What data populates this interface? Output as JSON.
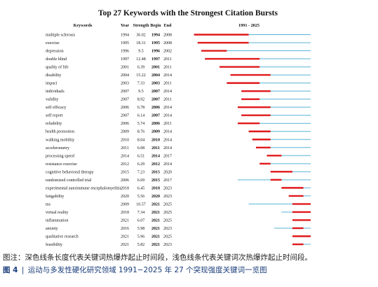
{
  "chart_data": {
    "type": "timeline",
    "title": "Top 27 Keywords with the Strongest Citation Bursts",
    "headers": {
      "keywords": "Keywords",
      "year": "Year",
      "strength": "Strength",
      "begin": "Begin",
      "end": "End",
      "range": "1991 - 2025"
    },
    "range": [
      1991,
      2025
    ],
    "rows": [
      {
        "keyword": "multiple sclerosis",
        "year": "1994",
        "strength": "36.02",
        "begin": "1994",
        "end": "2008"
      },
      {
        "keyword": "exercise",
        "year": "1995",
        "strength": "18.31",
        "begin": "1995",
        "end": "2008"
      },
      {
        "keyword": "depression",
        "year": "1996",
        "strength": "9.5",
        "begin": "1996",
        "end": "2002"
      },
      {
        "keyword": "double blind",
        "year": "1997",
        "strength": "12.48",
        "begin": "1997",
        "end": "2011"
      },
      {
        "keyword": "quality of life",
        "year": "2001",
        "strength": "6.39",
        "begin": "2001",
        "end": "2011"
      },
      {
        "keyword": "disability",
        "year": "2004",
        "strength": "15.22",
        "begin": "2004",
        "end": "2014"
      },
      {
        "keyword": "impact",
        "year": "2003",
        "strength": "7.33",
        "begin": "2003",
        "end": "2011"
      },
      {
        "keyword": "individuals",
        "year": "2007",
        "strength": "9.5",
        "begin": "2007",
        "end": "2014"
      },
      {
        "keyword": "validity",
        "year": "2007",
        "strength": "8.92",
        "begin": "2007",
        "end": "2011"
      },
      {
        "keyword": "self efficacy",
        "year": "2006",
        "strength": "6.78",
        "begin": "2006",
        "end": "2014"
      },
      {
        "keyword": "self report",
        "year": "2007",
        "strength": "6.14",
        "begin": "2007",
        "end": "2014"
      },
      {
        "keyword": "reliability",
        "year": "2006",
        "strength": "5.74",
        "begin": "2006",
        "end": "2011"
      },
      {
        "keyword": "health promotion",
        "year": "2009",
        "strength": "8.76",
        "begin": "2009",
        "end": "2014"
      },
      {
        "keyword": "walking mobility",
        "year": "2010",
        "strength": "8.04",
        "begin": "2010",
        "end": "2014"
      },
      {
        "keyword": "accelerometry",
        "year": "2011",
        "strength": "6.08",
        "begin": "2011",
        "end": "2014"
      },
      {
        "keyword": "processing speed",
        "year": "2014",
        "strength": "6.51",
        "begin": "2014",
        "end": "2017"
      },
      {
        "keyword": "resistance exercise",
        "year": "2012",
        "strength": "6.29",
        "begin": "2012",
        "end": "2014"
      },
      {
        "keyword": "cognitive behavioral therapy",
        "year": "2015",
        "strength": "7.23",
        "begin": "2015",
        "end": "2020"
      },
      {
        "keyword": "randomized controlled trial",
        "year": "2006",
        "strength": "6.69",
        "begin": "2015",
        "end": "2017"
      },
      {
        "keyword": "experimental autoimmune encephalomyelitis",
        "year": "2018",
        "strength": "6.45",
        "begin": "2018",
        "end": "2023"
      },
      {
        "keyword": "fatigability",
        "year": "2020",
        "strength": "5.56",
        "begin": "2020",
        "end": "2023"
      },
      {
        "keyword": "ms",
        "year": "2009",
        "strength": "10.57",
        "begin": "2021",
        "end": "2025"
      },
      {
        "keyword": "virtual reality",
        "year": "2018",
        "strength": "7.34",
        "begin": "2021",
        "end": "2025"
      },
      {
        "keyword": "inflammation",
        "year": "2021",
        "strength": "6.07",
        "begin": "2021",
        "end": "2025"
      },
      {
        "keyword": "anxiety",
        "year": "2016",
        "strength": "5.98",
        "begin": "2021",
        "end": "2023"
      },
      {
        "keyword": "qualitative research",
        "year": "2021",
        "strength": "5.96",
        "begin": "2021",
        "end": "2025"
      },
      {
        "keyword": "feasibility",
        "year": "2021",
        "strength": "5.82",
        "begin": "2021",
        "end": "2023"
      }
    ],
    "colors": {
      "burst": "#e0191b",
      "timeline": "#58b3d6",
      "text": "#111111"
    }
  },
  "note": "图注：深色线条长度代表关键词热爆炸起止时间段，浅色线条代表关键词次热爆炸起止时间段。",
  "caption": {
    "number": "图 4",
    "separator": "|",
    "text": "运动与多发性硬化研究领域 1991−2025 年 27 个突现强度关键词一览图"
  }
}
